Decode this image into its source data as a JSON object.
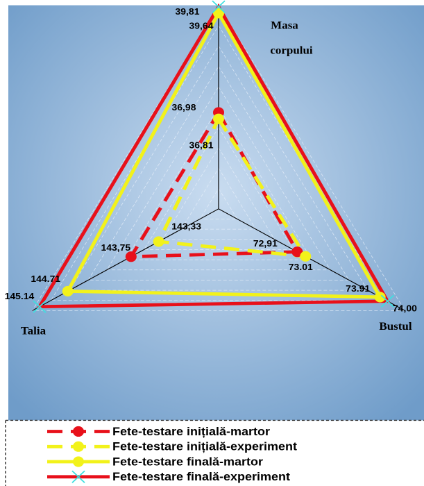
{
  "chart_data": {
    "type": "radar",
    "axes": [
      "Masa corpului",
      "Bustul",
      "Talia"
    ],
    "rlim": [
      [
        34.4,
        39.85
      ],
      [
        71.96,
        74.21
      ],
      [
        142.42,
        145.25
      ]
    ],
    "series": [
      {
        "name": "Fete-testare inițială-martor",
        "color": "#e8101a",
        "dash": true,
        "marker": "circle",
        "values": [
          36.98,
          72.91,
          143.75
        ],
        "value_labels": [
          "36,98",
          "72,91",
          "143,75"
        ]
      },
      {
        "name": "Fete-testare inițială-experiment",
        "color": "#f2f21a",
        "dash": true,
        "marker": "circle",
        "values": [
          36.81,
          73.01,
          143.33
        ],
        "value_labels": [
          "36,81",
          "73.01",
          "143,33"
        ]
      },
      {
        "name": "Fete-testare finală-martor",
        "color": "#f2f21a",
        "dash": false,
        "marker": "circle",
        "values": [
          39.64,
          73.91,
          144.71
        ],
        "value_labels": [
          "39,64",
          "73.91",
          "144.71"
        ]
      },
      {
        "name": "Fete-testare finală-experiment",
        "color": "#e8101a",
        "dash": false,
        "marker": "x",
        "values": [
          39.81,
          74.0,
          145.14
        ],
        "value_labels": [
          "39,81",
          "74,00",
          "145.14"
        ]
      }
    ]
  }
}
